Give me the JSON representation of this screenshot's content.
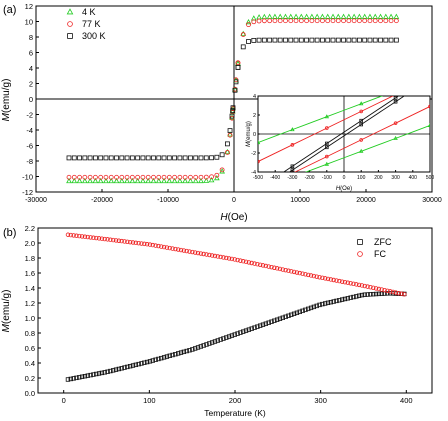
{
  "chart_data": [
    {
      "type": "scatter",
      "panel_label": "(a)",
      "xlabel_italic": "H",
      "xlabel_unit": "(Oe)",
      "ylabel_italic": "M",
      "ylabel_unit": "(emu/g)",
      "xlim": [
        -30000,
        30000
      ],
      "ylim": [
        -12,
        12
      ],
      "xticks": [
        -30000,
        -20000,
        -10000,
        0,
        10000,
        20000,
        30000
      ],
      "yticks": [
        -12,
        -10,
        -8,
        -6,
        -4,
        -2,
        0,
        2,
        4,
        6,
        8,
        10,
        12
      ],
      "legend_position": "top-left",
      "series": [
        {
          "name": "4 K",
          "marker": "triangle",
          "color": "#22cc22",
          "Ms": 10.6,
          "Hk": 1300
        },
        {
          "name": "77 K",
          "marker": "circle",
          "color": "#ee2222",
          "Ms": 10.1,
          "Hk": 1200
        },
        {
          "name": "300 K",
          "marker": "square",
          "color": "#111111",
          "Ms": 7.6,
          "Hk": 1000
        }
      ],
      "inset": {
        "xlabel_italic": "H",
        "xlabel_unit": "(Oe)",
        "ylabel_italic": "M",
        "ylabel_unit": "(emu/g)",
        "xlim": [
          -500,
          500
        ],
        "ylim": [
          -4,
          4
        ],
        "xticks": [
          -500,
          -400,
          -300,
          -200,
          -100,
          0,
          100,
          200,
          300,
          400,
          500
        ],
        "yticks": [
          -4,
          -2,
          0,
          2,
          4
        ],
        "loops": [
          {
            "series": "4 K",
            "color": "#22cc22",
            "slope": 0.0068,
            "offset": 2.5
          },
          {
            "series": "77 K",
            "color": "#ee2222",
            "slope": 0.0088,
            "offset": 1.5
          },
          {
            "series": "300 K",
            "color": "#111111",
            "slope": 0.012,
            "offset": 0.2
          }
        ]
      }
    },
    {
      "type": "scatter",
      "panel_label": "(b)",
      "xlabel": "Temperature (K)",
      "ylabel_italic": "M",
      "ylabel_unit": "(emu/g)",
      "xlim": [
        -30,
        430
      ],
      "ylim": [
        0.0,
        2.2
      ],
      "xticks": [
        0,
        100,
        200,
        300,
        400
      ],
      "yticks": [
        0.0,
        0.2,
        0.4,
        0.6,
        0.8,
        1.0,
        1.2,
        1.4,
        1.6,
        1.8,
        2.0,
        2.2
      ],
      "legend_position": "top-right",
      "series": [
        {
          "name": "ZFC",
          "marker": "square",
          "color": "#111111",
          "x": [
            5,
            50,
            100,
            150,
            200,
            250,
            300,
            350,
            380,
            400
          ],
          "y": [
            0.18,
            0.28,
            0.42,
            0.58,
            0.78,
            0.98,
            1.18,
            1.31,
            1.33,
            1.32
          ]
        },
        {
          "name": "FC",
          "marker": "circle",
          "color": "#ee2222",
          "x": [
            5,
            50,
            100,
            150,
            200,
            250,
            300,
            350,
            400
          ],
          "y": [
            2.11,
            2.05,
            1.98,
            1.88,
            1.78,
            1.66,
            1.54,
            1.43,
            1.31
          ]
        }
      ]
    }
  ]
}
